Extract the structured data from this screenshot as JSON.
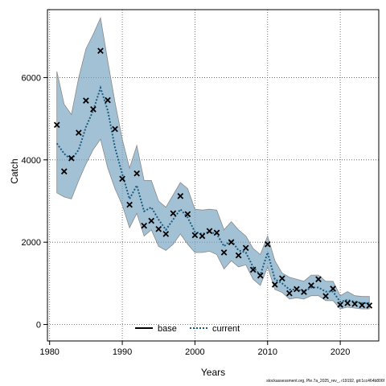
{
  "chart_data": {
    "type": "line",
    "xlabel": "Years",
    "ylabel": "Catch",
    "xlim": [
      1979.7,
      2025.3
    ],
    "ylim": [
      -400,
      7650
    ],
    "xticks": [
      1980,
      1990,
      2000,
      2010,
      2020
    ],
    "yticks": [
      0,
      2000,
      4000,
      6000
    ],
    "grid": true,
    "legend_position": "bottom",
    "colors": {
      "band_fill": "#7ba7c3",
      "band_stroke": "#8a8a8a",
      "current_line": "#1b5d80",
      "base_line": "#000000",
      "observed_marker": "#000000",
      "grid": "#555555"
    },
    "years": [
      1981,
      1982,
      1983,
      1984,
      1985,
      1986,
      1987,
      1988,
      1989,
      1990,
      1991,
      1992,
      1993,
      1994,
      1995,
      1996,
      1997,
      1998,
      1999,
      2000,
      2001,
      2002,
      2003,
      2004,
      2005,
      2006,
      2007,
      2008,
      2009,
      2010,
      2011,
      2012,
      2013,
      2014,
      2015,
      2016,
      2017,
      2018,
      2019,
      2020,
      2021,
      2022,
      2023,
      2024
    ],
    "observed": [
      4850,
      3720,
      4040,
      4660,
      5440,
      5230,
      6650,
      5450,
      4750,
      3540,
      2910,
      3670,
      2400,
      2520,
      2320,
      2200,
      2700,
      3120,
      2680,
      2170,
      2150,
      2270,
      2230,
      1750,
      2000,
      1680,
      1860,
      1330,
      1190,
      1950,
      970,
      1120,
      760,
      860,
      790,
      950,
      1100,
      690,
      870,
      480,
      520,
      500,
      470,
      460
    ],
    "series": [
      {
        "name": "current",
        "values": [
          4400,
          4150,
          4000,
          4250,
          4800,
          5200,
          5750,
          5200,
          4300,
          3650,
          3050,
          3380,
          2750,
          2850,
          2550,
          2300,
          2550,
          2800,
          2600,
          2250,
          2200,
          2250,
          2200,
          1900,
          2050,
          1800,
          1750,
          1400,
          1200,
          1750,
          1100,
          1000,
          850,
          850,
          800,
          900,
          900,
          800,
          800,
          550,
          600,
          550,
          520,
          520
        ]
      },
      {
        "name": "base",
        "values": []
      }
    ],
    "band": {
      "upper": [
        6150,
        5350,
        5100,
        6000,
        6700,
        7050,
        7450,
        6400,
        5400,
        4500,
        3800,
        4350,
        3500,
        3500,
        3000,
        2850,
        3150,
        3450,
        3300,
        2800,
        2780,
        2800,
        2780,
        2300,
        2500,
        2300,
        2150,
        1850,
        1700,
        2150,
        1550,
        1250,
        1150,
        1100,
        1050,
        1200,
        1200,
        1050,
        1050,
        700,
        800,
        700,
        680,
        680
      ],
      "lower": [
        3200,
        3100,
        3050,
        3500,
        3900,
        4250,
        4500,
        3800,
        3300,
        2900,
        2350,
        2700,
        2150,
        2300,
        1900,
        1800,
        1950,
        2200,
        1950,
        1750,
        1750,
        1780,
        1700,
        1350,
        1550,
        1400,
        1450,
        1100,
        950,
        1400,
        850,
        780,
        620,
        650,
        620,
        700,
        700,
        580,
        580,
        380,
        420,
        400,
        380,
        380
      ]
    }
  },
  "footnote": "stockassessment.org, Ple.7a_2025_rev_, r19192, git:1cc464b806f"
}
